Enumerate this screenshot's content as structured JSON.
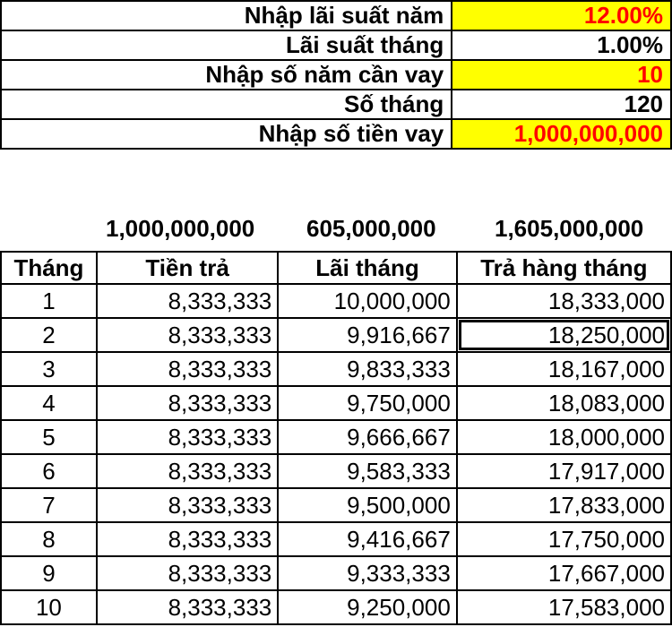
{
  "inputs": [
    {
      "label": "Nhập lãi suất năm",
      "value": "12.00%",
      "highlight": true
    },
    {
      "label": "Lãi suất tháng",
      "value": "1.00%",
      "highlight": false
    },
    {
      "label": "Nhập số năm cần vay",
      "value": "10",
      "highlight": true
    },
    {
      "label": "Số tháng",
      "value": "120",
      "highlight": false
    },
    {
      "label": "Nhập số tiền vay",
      "value": "1,000,000,000",
      "highlight": true
    }
  ],
  "totals": {
    "principal": "1,000,000,000",
    "interest": "605,000,000",
    "payment": "1,605,000,000"
  },
  "table": {
    "headers": [
      "Tháng",
      "Tiền trả",
      "Lãi tháng",
      "Trả hàng tháng"
    ],
    "rows": [
      [
        "1",
        "8,333,333",
        "10,000,000",
        "18,333,000"
      ],
      [
        "2",
        "8,333,333",
        "9,916,667",
        "18,250,000"
      ],
      [
        "3",
        "8,333,333",
        "9,833,333",
        "18,167,000"
      ],
      [
        "4",
        "8,333,333",
        "9,750,000",
        "18,083,000"
      ],
      [
        "5",
        "8,333,333",
        "9,666,667",
        "18,000,000"
      ],
      [
        "6",
        "8,333,333",
        "9,583,333",
        "17,917,000"
      ],
      [
        "7",
        "8,333,333",
        "9,500,000",
        "17,833,000"
      ],
      [
        "8",
        "8,333,333",
        "9,416,667",
        "17,750,000"
      ],
      [
        "9",
        "8,333,333",
        "9,333,333",
        "17,667,000"
      ],
      [
        "10",
        "8,333,333",
        "9,250,000",
        "17,583,000"
      ]
    ]
  },
  "colors": {
    "input_fill": "#ffff00",
    "input_text": "#ff0000"
  }
}
